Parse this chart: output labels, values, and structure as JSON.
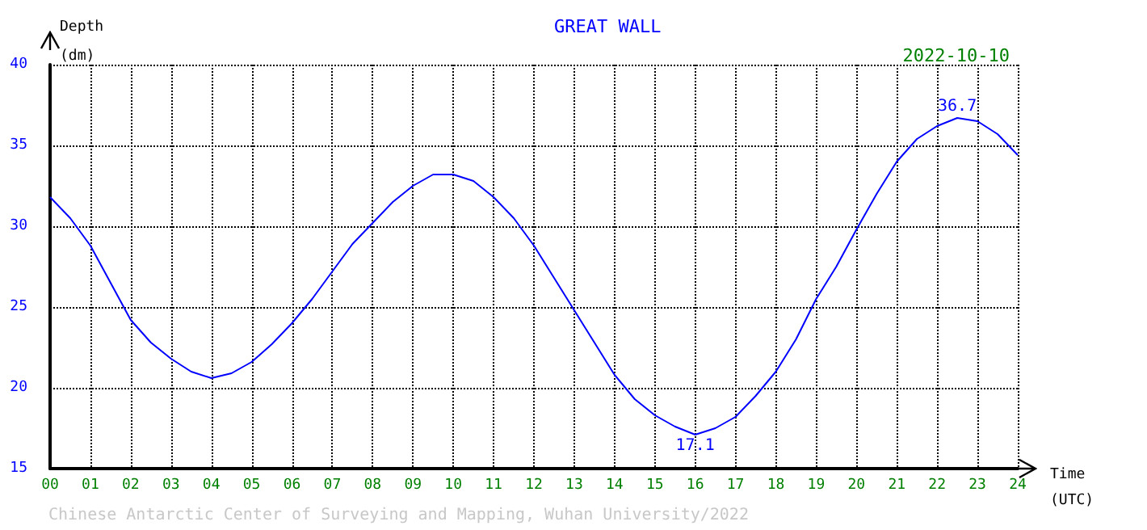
{
  "chart_data": {
    "type": "line",
    "title": "GREAT WALL",
    "subtitle": "2022-10-10",
    "xlabel": "Time\n(UTC)",
    "ylabel": "Depth\n(dm)",
    "x": [
      0,
      0.5,
      1,
      1.5,
      2,
      2.5,
      3,
      3.5,
      4,
      4.5,
      5,
      5.5,
      6,
      6.5,
      7,
      7.5,
      8,
      8.5,
      9,
      9.5,
      10,
      10.5,
      11,
      11.5,
      12,
      12.5,
      13,
      13.5,
      14,
      14.5,
      15,
      15.5,
      16,
      16.5,
      17,
      17.5,
      18,
      18.5,
      19,
      19.5,
      20,
      20.5,
      21,
      21.5,
      22,
      22.5,
      23,
      23.5,
      24
    ],
    "series": [
      {
        "color": "#0000ff",
        "values": [
          31.8,
          30.5,
          28.8,
          26.5,
          24.2,
          22.8,
          21.8,
          21.0,
          20.6,
          20.9,
          21.6,
          22.7,
          24.0,
          25.5,
          27.2,
          28.9,
          30.2,
          31.5,
          32.5,
          33.2,
          33.2,
          32.8,
          31.8,
          30.5,
          28.8,
          26.8,
          24.8,
          22.8,
          20.8,
          19.3,
          18.3,
          17.6,
          17.1,
          17.5,
          18.2,
          19.5,
          21.0,
          23.0,
          25.5,
          27.5,
          29.8,
          32.0,
          34.0,
          35.4,
          36.2,
          36.7,
          36.5,
          35.7,
          34.4
        ]
      }
    ],
    "xlim": [
      0,
      24
    ],
    "ylim": [
      15,
      40
    ],
    "xticks": [
      {
        "value": 0,
        "label": "00"
      },
      {
        "value": 1,
        "label": "01"
      },
      {
        "value": 2,
        "label": "02"
      },
      {
        "value": 3,
        "label": "03"
      },
      {
        "value": 4,
        "label": "04"
      },
      {
        "value": 5,
        "label": "05"
      },
      {
        "value": 6,
        "label": "06"
      },
      {
        "value": 7,
        "label": "07"
      },
      {
        "value": 8,
        "label": "08"
      },
      {
        "value": 9,
        "label": "09"
      },
      {
        "value": 10,
        "label": "10"
      },
      {
        "value": 11,
        "label": "11"
      },
      {
        "value": 12,
        "label": "12"
      },
      {
        "value": 13,
        "label": "13"
      },
      {
        "value": 14,
        "label": "14"
      },
      {
        "value": 15,
        "label": "15"
      },
      {
        "value": 16,
        "label": "16"
      },
      {
        "value": 17,
        "label": "17"
      },
      {
        "value": 18,
        "label": "18"
      },
      {
        "value": 19,
        "label": "19"
      },
      {
        "value": 20,
        "label": "20"
      },
      {
        "value": 21,
        "label": "21"
      },
      {
        "value": 22,
        "label": "22"
      },
      {
        "value": 23,
        "label": "23"
      },
      {
        "value": 24,
        "label": "24"
      }
    ],
    "yticks": [
      15,
      20,
      25,
      30,
      35,
      40
    ],
    "annotations": [
      {
        "text": "36.7",
        "x": 22.5,
        "y": 36.7
      },
      {
        "text": "17.1",
        "x": 16,
        "y": 17.1
      },
      "Chinese Antarctic Center of Surveying and Mapping, Wuhan University/2022"
    ],
    "grid": true,
    "marker": "none",
    "line_style": "solid"
  }
}
